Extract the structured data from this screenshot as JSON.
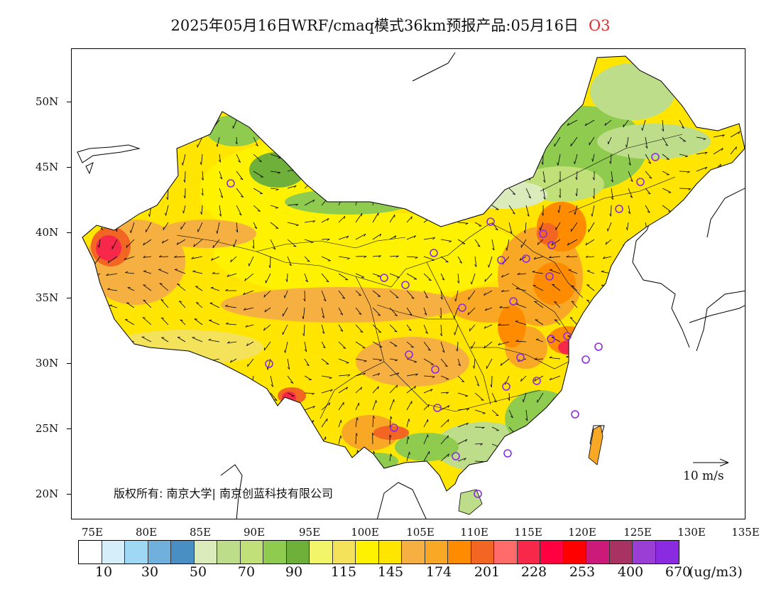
{
  "title": {
    "main": "2025年05月16日WRF/cmaq模式36km预报产品:05月16日",
    "species": "O3"
  },
  "map": {
    "lat_labels": [
      "50N",
      "45N",
      "40N",
      "35N",
      "30N",
      "25N",
      "20N"
    ],
    "lon_labels": [
      "75E",
      "80E",
      "85E",
      "90E",
      "95E",
      "100E",
      "105E",
      "110E",
      "115E",
      "120E",
      "125E",
      "130E",
      "135E"
    ],
    "copyright": "版权所有: 南京大学| 南京创蓝科技有限公司",
    "wind_reference": "10 m/s"
  },
  "legend": {
    "labels": [
      "10",
      "30",
      "50",
      "70",
      "90",
      "115",
      "145",
      "174",
      "201",
      "228",
      "253",
      "400",
      "670"
    ],
    "unit": "(ug/m3)",
    "colors": [
      "#ffffff",
      "#d6eefa",
      "#9fd8f4",
      "#6fb0dd",
      "#4a8fc4",
      "#dcebbc",
      "#bedd8a",
      "#c2e07a",
      "#8ecb4f",
      "#6fb03a",
      "#f2f56a",
      "#f4e35a",
      "#fff200",
      "#ffe500",
      "#f5b041",
      "#f9a825",
      "#ff8c00",
      "#f26522",
      "#ff6a6a",
      "#f7284a",
      "#ff0040",
      "#ff0000",
      "#cc1a7a",
      "#a83261",
      "#9b3ed6",
      "#8a2be2"
    ]
  }
}
